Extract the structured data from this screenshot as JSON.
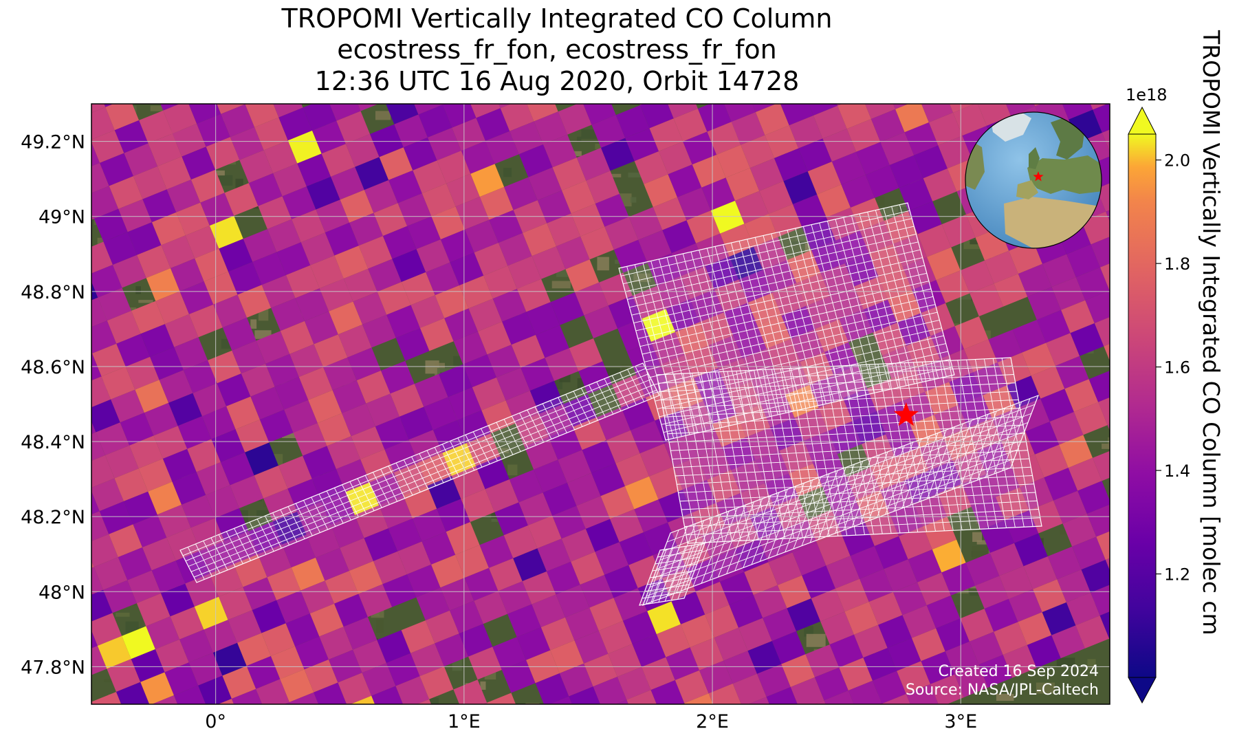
{
  "title": {
    "line1": "TROPOMI Vertically Integrated CO Column",
    "line2": "ecostress_fr_fon, ecostress_fr_fon",
    "line3": "12:36 UTC 16 Aug 2020, Orbit 14728"
  },
  "map": {
    "lon_range": [
      -0.5,
      3.6
    ],
    "lat_range": [
      47.7,
      49.3
    ],
    "lat_ticks": [
      "49.2°N",
      "49°N",
      "48.8°N",
      "48.6°N",
      "48.4°N",
      "48.2°N",
      "48°N",
      "47.8°N"
    ],
    "lon_ticks": [
      "0°",
      "1°E",
      "2°E",
      "3°E"
    ],
    "site_marker": {
      "lon": 2.78,
      "lat": 48.47,
      "symbol": "star",
      "color": "#ff0000"
    },
    "colormap": "plasma",
    "value_range": [
      1.0,
      2.05
    ]
  },
  "colorbar": {
    "label": "TROPOMI Vertically Integrated CO Column [molec cm",
    "multiplier": "1e18",
    "ticks": [
      "2.0",
      "1.8",
      "1.6",
      "1.4",
      "1.2"
    ],
    "tick_values": [
      2.0,
      1.8,
      1.6,
      1.4,
      1.2
    ],
    "min": 1.0,
    "max": 2.05,
    "extend": "both"
  },
  "credits": {
    "created": "Created 16 Sep 2024",
    "source": "Source: NASA/JPL-Caltech"
  },
  "inset_globe": {
    "marker_color": "#ff0000"
  }
}
